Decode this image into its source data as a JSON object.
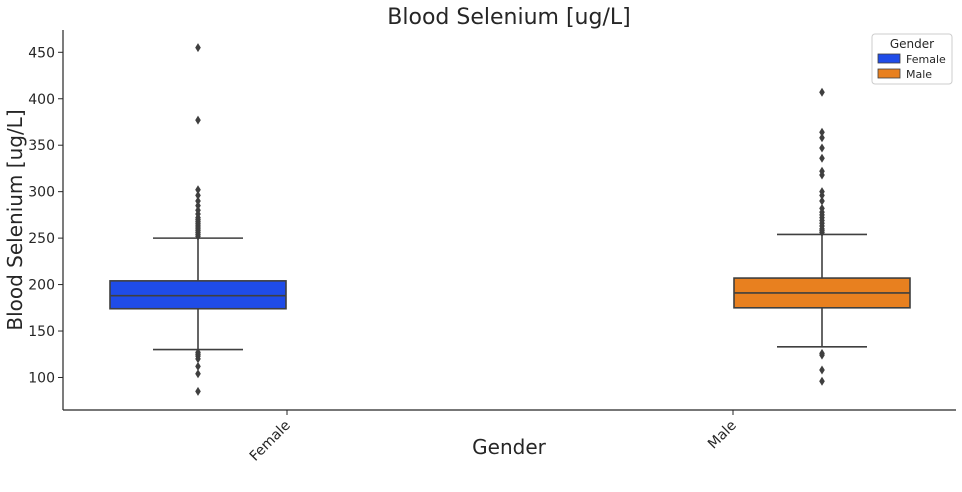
{
  "chart_data": {
    "type": "box",
    "title": "Blood Selenium [ug/L]",
    "xlabel": "Gender",
    "ylabel": "Blood Selenium [ug/L]",
    "ylim": [
      65,
      474
    ],
    "yticks": [
      100,
      150,
      200,
      250,
      300,
      350,
      400,
      450
    ],
    "categories": [
      "Female",
      "Male"
    ],
    "series": [
      {
        "name": "Female",
        "color": "#1f4ce8",
        "whisker_low": 130,
        "q1": 174,
        "median": 188,
        "q3": 204,
        "whisker_high": 250,
        "outliers": [
          85,
          104,
          112,
          120,
          123,
          125,
          127,
          252,
          254,
          256,
          258,
          260,
          262,
          264,
          266,
          268,
          270,
          272,
          276,
          280,
          285,
          290,
          296,
          302,
          377,
          455
        ]
      },
      {
        "name": "Male",
        "color": "#e8801f",
        "whisker_low": 133,
        "q1": 175,
        "median": 191,
        "q3": 207,
        "whisker_high": 254,
        "outliers": [
          96,
          108,
          124,
          126,
          256,
          258,
          260,
          263,
          266,
          269,
          272,
          275,
          278,
          282,
          290,
          296,
          300,
          318,
          322,
          336,
          347,
          358,
          364,
          407
        ]
      }
    ],
    "legend": {
      "title": "Gender",
      "placement": "top-right",
      "entries": [
        "Female",
        "Male"
      ]
    },
    "grid": false
  }
}
